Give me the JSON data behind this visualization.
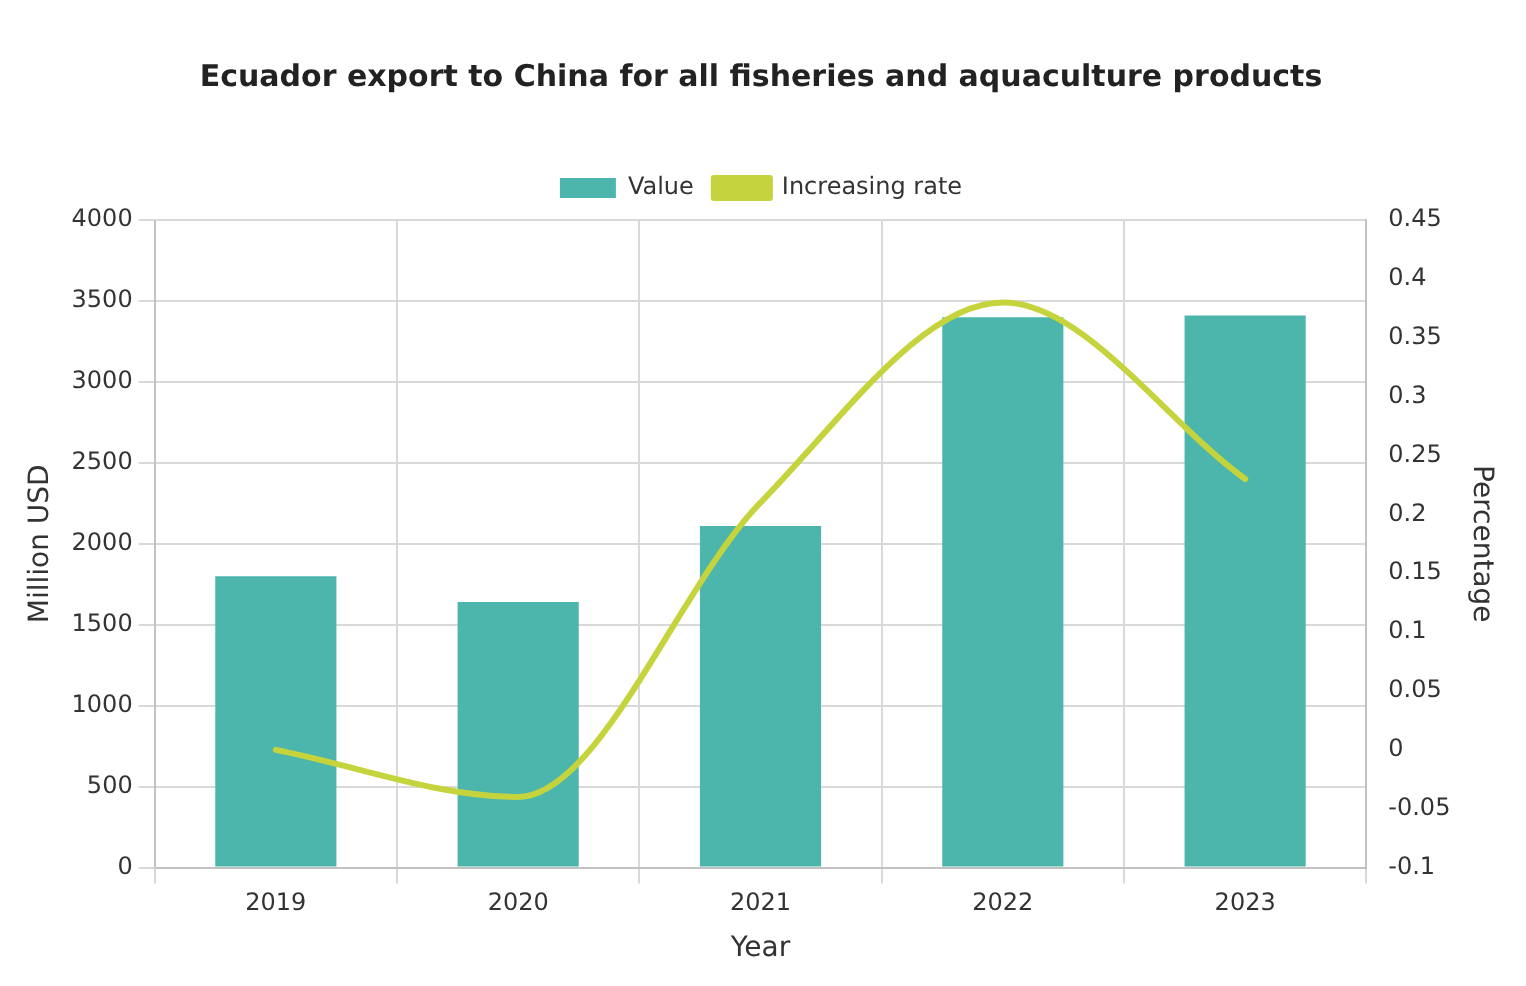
{
  "chart_data": {
    "type": "bar",
    "title": "Ecuador export to China for all fisheries and aquaculture products",
    "xlabel": "Year",
    "ylabel": "Million USD",
    "y2label": "Percentage",
    "categories": [
      "2019",
      "2020",
      "2021",
      "2022",
      "2023"
    ],
    "series": [
      {
        "name": "Value",
        "color": "#4db6ac",
        "values": [
          1800,
          1640,
          2110,
          3400,
          3410
        ]
      },
      {
        "name": "Increasing rate",
        "type": "line",
        "axis": "y2",
        "color": "#c5d43c",
        "values": [
          0.0,
          -0.04,
          0.21,
          0.38,
          0.23
        ]
      }
    ],
    "ylim": [
      0,
      4000
    ],
    "yticks": [
      0,
      500,
      1000,
      1500,
      2000,
      2500,
      3000,
      3500,
      4000
    ],
    "y2lim": [
      -0.1,
      0.45
    ],
    "y2ticks": [
      -0.1,
      -0.05,
      0,
      0.05,
      0.1,
      0.15,
      0.2,
      0.25,
      0.3,
      0.35,
      0.4,
      0.45
    ],
    "grid": true,
    "legend": "top",
    "marker": "none",
    "line_style": "solid"
  }
}
